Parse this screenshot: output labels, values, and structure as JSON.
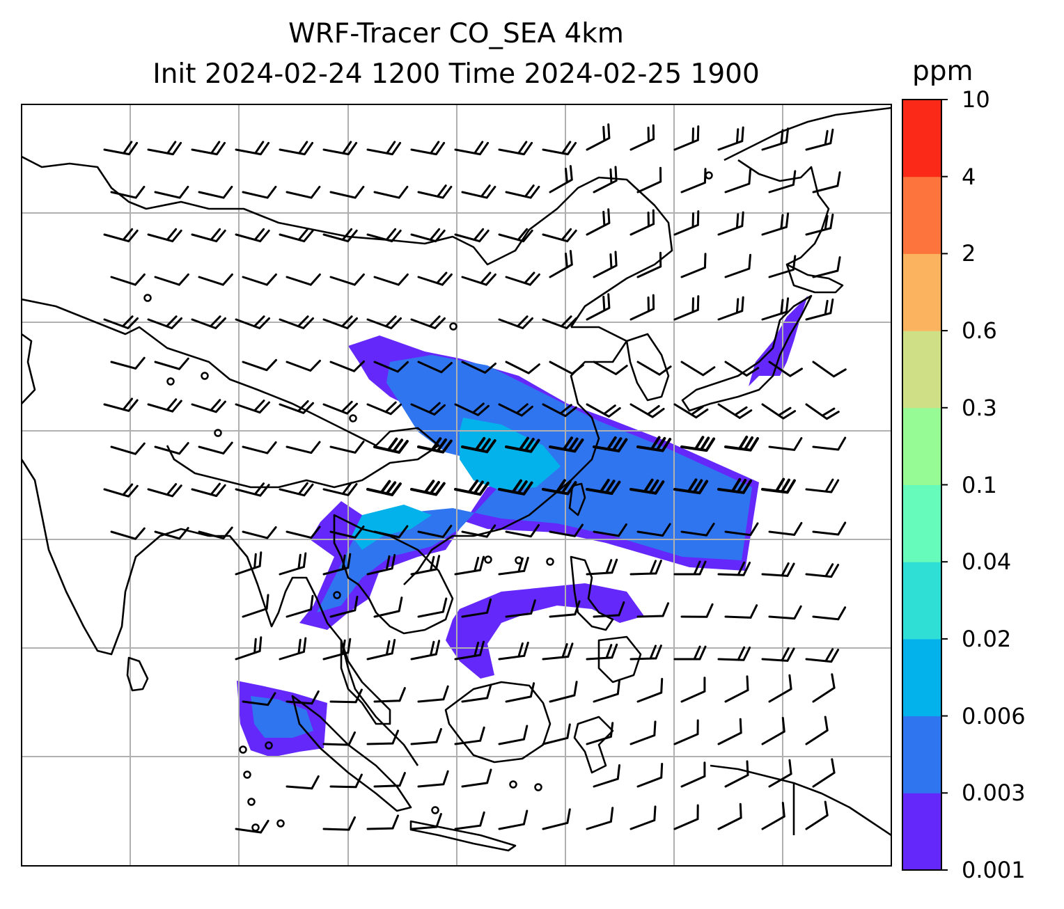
{
  "title_line1": "WRF-Tracer CO_SEA 4km",
  "title_line2": "Init 2024-02-24 1200 Time 2024-02-25 1900",
  "colorbar": {
    "unit": "ppm",
    "levels": [
      "0.001",
      "0.003",
      "0.006",
      "0.02",
      "0.04",
      "0.1",
      "0.3",
      "0.6",
      "2",
      "4",
      "10"
    ],
    "colors": [
      "#6428fa",
      "#3075f0",
      "#03b2ea",
      "#2fdfd6",
      "#66fbbb",
      "#96fa95",
      "#cedf85",
      "#fcb360",
      "#fd743c",
      "#fb2a18"
    ]
  },
  "map": {
    "frame_color": "#000000",
    "gridline_color": "#b0b0b0",
    "coastline_color": "#000000",
    "wind_barbs": true,
    "tracer_colors": {
      "lowest": "#6428fa",
      "low": "#3075f0",
      "mid": "#03b2ea"
    }
  }
}
